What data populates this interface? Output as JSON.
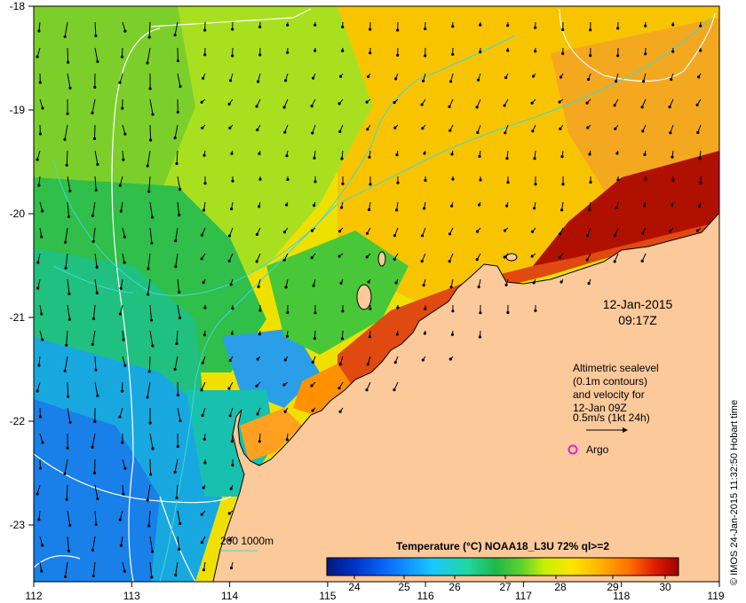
{
  "axes": {
    "x_ticks": [
      "112",
      "113",
      "114",
      "115",
      "116",
      "117",
      "118",
      "119"
    ],
    "y_ticks": [
      "-18",
      "-19",
      "-20",
      "-21",
      "-22",
      "-23"
    ]
  },
  "timestamp": {
    "date": "12-Jan-2015",
    "time": "09:17Z"
  },
  "legend": {
    "line1": "Altimetric sealevel",
    "line2": "(0.1m contours)",
    "line3": "and velocity for",
    "line4": "12-Jan 09Z",
    "scale": "0.5m/s (1kt 24h)",
    "argo": "Argo"
  },
  "isobath": {
    "label": "200  1000m"
  },
  "colorbar": {
    "title": "Temperature (°C) NOAA18_L3U 72% ql>=2",
    "ticks": [
      "24",
      "25",
      "26",
      "27",
      "28",
      "29",
      "30"
    ]
  },
  "credit": "© IMOS 24-Jan-2015 11:32:50 Hobart time",
  "colors": {
    "land": "#fcc99b",
    "argo": "#e020e0",
    "isobath": "#3fd8d8",
    "contour": "#ffffff",
    "arrow": "#000000"
  }
}
